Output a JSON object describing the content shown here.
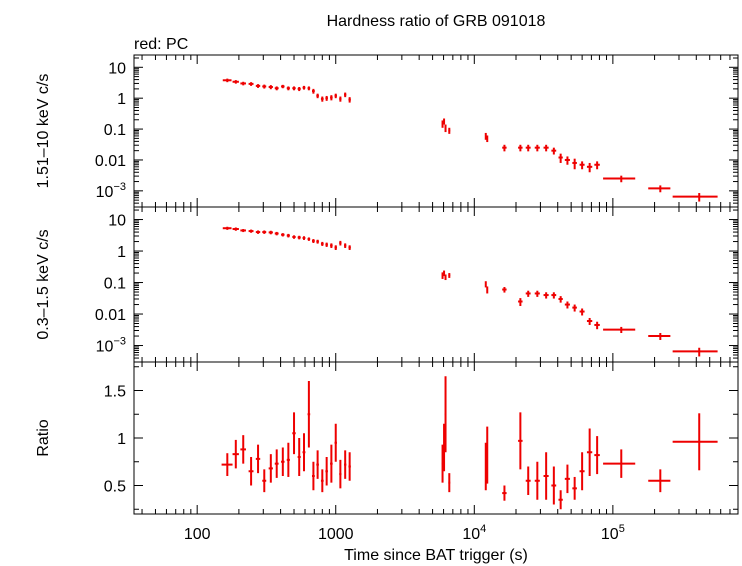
{
  "title": "Hardness ratio of GRB 091018",
  "subtitle": "red: PC",
  "colors": {
    "data": "#ee0000",
    "axis": "#000000"
  },
  "chart_data": [
    {
      "type": "scatter",
      "panel": "hard",
      "ylabel": "1.51–10 keV c/s",
      "yscale": "log",
      "xscale": "log",
      "ylim": [
        0.0003,
        25
      ],
      "yticks": [
        {
          "v": 10,
          "label": "10"
        },
        {
          "v": 1,
          "label": "1"
        },
        {
          "v": 0.1,
          "label": "0.1"
        },
        {
          "v": 0.01,
          "label": "0.01"
        },
        {
          "v": 0.001,
          "label": "10",
          "exp": "−3"
        }
      ],
      "points": [
        [
          165,
          3.8,
          12,
          0.5
        ],
        [
          190,
          3.4,
          10,
          0.45
        ],
        [
          215,
          3.0,
          10,
          0.4
        ],
        [
          245,
          2.9,
          10,
          0.4
        ],
        [
          275,
          2.5,
          10,
          0.35
        ],
        [
          305,
          2.4,
          10,
          0.35
        ],
        [
          340,
          2.3,
          12,
          0.35
        ],
        [
          375,
          2.1,
          12,
          0.3
        ],
        [
          415,
          2.4,
          12,
          0.3
        ],
        [
          455,
          2.1,
          12,
          0.3
        ],
        [
          500,
          2.1,
          14,
          0.3
        ],
        [
          545,
          2.0,
          14,
          0.3
        ],
        [
          590,
          2.2,
          14,
          0.3
        ],
        [
          640,
          2.1,
          14,
          0.3
        ],
        [
          690,
          1.7,
          16,
          0.3
        ],
        [
          740,
          1.2,
          16,
          0.2
        ],
        [
          800,
          0.95,
          18,
          0.18
        ],
        [
          860,
          1.0,
          18,
          0.18
        ],
        [
          930,
          1.05,
          20,
          0.2
        ],
        [
          1000,
          1.2,
          20,
          0.2
        ],
        [
          1080,
          0.95,
          20,
          0.18
        ],
        [
          1170,
          1.3,
          22,
          0.22
        ],
        [
          1260,
          0.9,
          25,
          0.18
        ],
        [
          5900,
          0.15,
          80,
          0.04
        ],
        [
          6050,
          0.18,
          80,
          0.04
        ],
        [
          6200,
          0.11,
          90,
          0.03
        ],
        [
          6600,
          0.09,
          100,
          0.02
        ],
        [
          12100,
          0.06,
          150,
          0.015
        ],
        [
          12400,
          0.05,
          150,
          0.012
        ],
        [
          16500,
          0.025,
          600,
          0.006
        ],
        [
          21500,
          0.025,
          800,
          0.006
        ],
        [
          24500,
          0.025,
          1000,
          0.006
        ],
        [
          28500,
          0.025,
          1200,
          0.006
        ],
        [
          33000,
          0.025,
          1400,
          0.006
        ],
        [
          37500,
          0.02,
          1500,
          0.005
        ],
        [
          42000,
          0.012,
          1500,
          0.004
        ],
        [
          47000,
          0.01,
          2000,
          0.003
        ],
        [
          53000,
          0.008,
          2000,
          0.003
        ],
        [
          60000,
          0.007,
          2500,
          0.002
        ],
        [
          68000,
          0.006,
          3000,
          0.002
        ],
        [
          77000,
          0.007,
          3500,
          0.002
        ],
        [
          115000,
          0.0025,
          30000,
          0.0006
        ],
        [
          220000,
          0.0012,
          40000,
          0.0003
        ],
        [
          420000,
          0.00065,
          150000,
          0.0002
        ]
      ]
    },
    {
      "type": "scatter",
      "panel": "soft",
      "ylabel": "0.3–1.5 keV c/s",
      "yscale": "log",
      "xscale": "log",
      "ylim": [
        0.0003,
        25
      ],
      "yticks": [
        {
          "v": 10,
          "label": "10"
        },
        {
          "v": 1,
          "label": "1"
        },
        {
          "v": 0.1,
          "label": "0.1"
        },
        {
          "v": 0.01,
          "label": "0.01"
        },
        {
          "v": 0.001,
          "label": "10",
          "exp": "−3"
        }
      ],
      "points": [
        [
          165,
          5.3,
          12,
          0.6
        ],
        [
          190,
          5.0,
          10,
          0.6
        ],
        [
          215,
          4.5,
          10,
          0.5
        ],
        [
          245,
          4.3,
          10,
          0.5
        ],
        [
          275,
          4.0,
          10,
          0.5
        ],
        [
          305,
          4.0,
          10,
          0.5
        ],
        [
          340,
          3.9,
          12,
          0.5
        ],
        [
          375,
          3.6,
          12,
          0.45
        ],
        [
          415,
          3.3,
          12,
          0.4
        ],
        [
          455,
          3.1,
          12,
          0.4
        ],
        [
          500,
          2.8,
          14,
          0.35
        ],
        [
          545,
          2.7,
          14,
          0.35
        ],
        [
          590,
          2.6,
          14,
          0.35
        ],
        [
          640,
          2.4,
          14,
          0.3
        ],
        [
          690,
          2.1,
          16,
          0.3
        ],
        [
          740,
          2.0,
          16,
          0.28
        ],
        [
          800,
          1.7,
          18,
          0.25
        ],
        [
          860,
          1.6,
          18,
          0.25
        ],
        [
          930,
          1.5,
          20,
          0.25
        ],
        [
          1000,
          1.3,
          20,
          0.22
        ],
        [
          1080,
          1.8,
          20,
          0.3
        ],
        [
          1170,
          1.5,
          22,
          0.25
        ],
        [
          1260,
          1.3,
          25,
          0.22
        ],
        [
          5900,
          0.17,
          80,
          0.04
        ],
        [
          6050,
          0.2,
          80,
          0.04
        ],
        [
          6200,
          0.15,
          90,
          0.03
        ],
        [
          6600,
          0.17,
          100,
          0.03
        ],
        [
          12100,
          0.09,
          150,
          0.02
        ],
        [
          12400,
          0.06,
          150,
          0.015
        ],
        [
          16500,
          0.06,
          600,
          0.012
        ],
        [
          21500,
          0.025,
          800,
          0.007
        ],
        [
          24500,
          0.045,
          1000,
          0.01
        ],
        [
          28500,
          0.045,
          1200,
          0.01
        ],
        [
          33000,
          0.04,
          1400,
          0.009
        ],
        [
          37500,
          0.04,
          1500,
          0.009
        ],
        [
          42000,
          0.03,
          1500,
          0.007
        ],
        [
          47000,
          0.02,
          2000,
          0.005
        ],
        [
          53000,
          0.016,
          2000,
          0.004
        ],
        [
          60000,
          0.012,
          2500,
          0.003
        ],
        [
          68000,
          0.006,
          3000,
          0.0015
        ],
        [
          77000,
          0.0045,
          3500,
          0.0012
        ],
        [
          115000,
          0.0032,
          30000,
          0.0007
        ],
        [
          220000,
          0.002,
          40000,
          0.0005
        ],
        [
          420000,
          0.00065,
          150000,
          0.0002
        ]
      ]
    },
    {
      "type": "scatter",
      "panel": "ratio",
      "ylabel": "Ratio",
      "xlabel": "Time since BAT trigger (s)",
      "yscale": "linear",
      "xscale": "log",
      "xlim": [
        35,
        800000
      ],
      "ylim": [
        0.2,
        1.8
      ],
      "yticks": [
        {
          "v": 0.5,
          "label": "0.5"
        },
        {
          "v": 1,
          "label": "1"
        },
        {
          "v": 1.5,
          "label": "1.5"
        }
      ],
      "xticks": [
        {
          "v": 100,
          "label": "100"
        },
        {
          "v": 1000,
          "label": "1000"
        },
        {
          "v": 10000,
          "label": "10",
          "exp": "4"
        },
        {
          "v": 100000,
          "label": "10",
          "exp": "5"
        }
      ],
      "points": [
        [
          165,
          0.72,
          15,
          0.12
        ],
        [
          190,
          0.83,
          10,
          0.15
        ],
        [
          215,
          0.88,
          10,
          0.15
        ],
        [
          245,
          0.65,
          10,
          0.15
        ],
        [
          275,
          0.78,
          10,
          0.15
        ],
        [
          305,
          0.55,
          10,
          0.12
        ],
        [
          340,
          0.68,
          12,
          0.15
        ],
        [
          375,
          0.73,
          12,
          0.15
        ],
        [
          415,
          0.75,
          12,
          0.15
        ],
        [
          455,
          0.77,
          12,
          0.18
        ],
        [
          500,
          1.05,
          14,
          0.22
        ],
        [
          545,
          0.8,
          14,
          0.2
        ],
        [
          590,
          0.85,
          14,
          0.2
        ],
        [
          640,
          1.25,
          14,
          0.35
        ],
        [
          690,
          0.6,
          16,
          0.15
        ],
        [
          740,
          0.72,
          16,
          0.15
        ],
        [
          800,
          0.55,
          18,
          0.12
        ],
        [
          860,
          0.65,
          18,
          0.15
        ],
        [
          930,
          0.73,
          20,
          0.2
        ],
        [
          1000,
          0.95,
          20,
          0.2
        ],
        [
          1080,
          0.62,
          20,
          0.15
        ],
        [
          1170,
          0.72,
          22,
          0.15
        ],
        [
          1260,
          0.7,
          25,
          0.15
        ],
        [
          5900,
          0.73,
          80,
          0.2
        ],
        [
          6050,
          0.9,
          80,
          0.25
        ],
        [
          6200,
          1.25,
          90,
          0.4
        ],
        [
          6600,
          0.53,
          100,
          0.1
        ],
        [
          12100,
          0.7,
          150,
          0.25
        ],
        [
          12400,
          0.82,
          150,
          0.3
        ],
        [
          16500,
          0.42,
          600,
          0.08
        ],
        [
          21500,
          0.97,
          800,
          0.3
        ],
        [
          24500,
          0.55,
          1000,
          0.15
        ],
        [
          28500,
          0.55,
          1200,
          0.2
        ],
        [
          33000,
          0.6,
          1400,
          0.25
        ],
        [
          37500,
          0.5,
          1500,
          0.2
        ],
        [
          42000,
          0.35,
          1500,
          0.1
        ],
        [
          47000,
          0.57,
          2000,
          0.15
        ],
        [
          53000,
          0.47,
          2000,
          0.12
        ],
        [
          60000,
          0.65,
          2500,
          0.2
        ],
        [
          68000,
          0.85,
          3000,
          0.25
        ],
        [
          77000,
          0.82,
          3500,
          0.2
        ],
        [
          115000,
          0.73,
          30000,
          0.15
        ],
        [
          220000,
          0.55,
          40000,
          0.12
        ],
        [
          420000,
          0.96,
          150000,
          0.3
        ]
      ]
    }
  ]
}
